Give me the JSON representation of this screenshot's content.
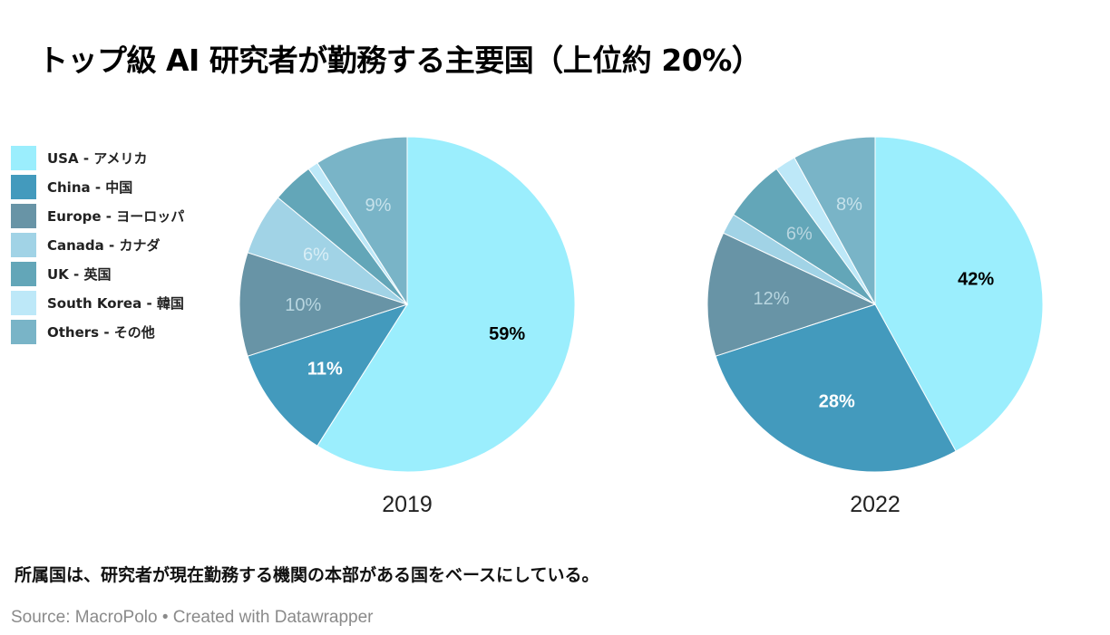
{
  "title": "トップ級 AI 研究者が勤務する主要国（上位約 20%）",
  "legend": [
    {
      "label": "USA - アメリカ",
      "color": "#9beefd"
    },
    {
      "label": "China - 中国",
      "color": "#439abd"
    },
    {
      "label": "Europe - ヨーロッパ",
      "color": "#6894a6"
    },
    {
      "label": "Canada - カナダ",
      "color": "#a1d3e6"
    },
    {
      "label": "UK - 英国",
      "color": "#63a6b8"
    },
    {
      "label": "South Korea - 韓国",
      "color": "#bde8f8"
    },
    {
      "label": "Others - その他",
      "color": "#79b4c7"
    }
  ],
  "chart_data": [
    {
      "type": "pie",
      "title": "2019",
      "categories": [
        "USA - アメリカ",
        "China - 中国",
        "Europe - ヨーロッパ",
        "Canada - カナダ",
        "UK - 英国",
        "South Korea - 韓国",
        "Others - その他"
      ],
      "values": [
        59,
        11,
        10,
        6,
        4,
        1,
        9
      ],
      "data_labels": [
        "59%",
        "11%",
        "10%",
        "6%",
        "",
        "",
        "9%"
      ]
    },
    {
      "type": "pie",
      "title": "2022",
      "categories": [
        "USA - アメリカ",
        "China - 中国",
        "Europe - ヨーロッパ",
        "Canada - カナダ",
        "UK - 英国",
        "South Korea - 韓国",
        "Others - その他"
      ],
      "values": [
        42,
        28,
        12,
        2,
        6,
        2,
        8
      ],
      "data_labels": [
        "42%",
        "28%",
        "12%",
        "",
        "6%",
        "",
        "8%"
      ]
    }
  ],
  "label_colors": [
    "#000000",
    "#ffffff",
    "#b8d6e0",
    "#d9eef6",
    "#b8d6e0",
    "#e6f5fb",
    "#c6e2eb"
  ],
  "label_weights": [
    "bold",
    "bold",
    "normal",
    "normal",
    "normal",
    "normal",
    "normal"
  ],
  "note": "所属国は、研究者が現在勤務する機関の本部がある国をベースにしている。",
  "source": "Source: MacroPolo • Created with Datawrapper"
}
